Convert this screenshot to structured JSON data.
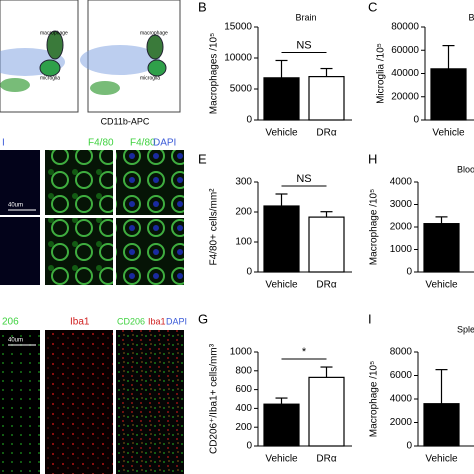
{
  "chart_data": [
    {
      "type": "bar",
      "panel": "B",
      "title": "Brain",
      "y_label": "Macrophages /10⁵",
      "categories": [
        "Vehicle",
        "DRα"
      ],
      "values": [
        6800,
        7000
      ],
      "errors": [
        2800,
        1300
      ],
      "colors": [
        "#000000",
        "#ffffff"
      ],
      "ylim": [
        0,
        15000
      ],
      "yticks": [
        0,
        5000,
        10000,
        15000
      ],
      "annotation": "NS"
    },
    {
      "type": "bar",
      "panel": "C",
      "title": "Br",
      "y_label": "Microglia /10⁵",
      "categories": [
        "Vehicle"
      ],
      "values": [
        44000
      ],
      "errors": [
        20000
      ],
      "colors": [
        "#000000"
      ],
      "ylim": [
        0,
        80000
      ],
      "yticks": [
        0,
        20000,
        40000,
        60000,
        80000
      ]
    },
    {
      "type": "bar",
      "panel": "E",
      "y_label": "F4/80+ cells/mm²",
      "categories": [
        "Vehicle",
        "DRα"
      ],
      "values": [
        220,
        183
      ],
      "errors": [
        40,
        18
      ],
      "colors": [
        "#000000",
        "#ffffff"
      ],
      "ylim": [
        0,
        300
      ],
      "yticks": [
        0,
        100,
        200,
        300
      ],
      "annotation": "NS"
    },
    {
      "type": "bar",
      "panel": "H",
      "title": "Bloo",
      "y_label": "Macrophage /10⁵",
      "categories": [
        "Vehicle"
      ],
      "values": [
        2150
      ],
      "errors": [
        300
      ],
      "colors": [
        "#000000"
      ],
      "ylim": [
        0,
        4000
      ],
      "yticks": [
        0,
        1000,
        2000,
        3000,
        4000
      ]
    },
    {
      "type": "bar",
      "panel": "G",
      "y_label": "CD206⁺/Iba1+ cells/mm³",
      "categories": [
        "Vehicle",
        "DRα"
      ],
      "values": [
        445,
        730
      ],
      "errors": [
        65,
        110
      ],
      "colors": [
        "#000000",
        "#ffffff"
      ],
      "ylim": [
        0,
        1000
      ],
      "yticks": [
        0,
        200,
        400,
        600,
        800,
        1000
      ],
      "annotation": "*"
    },
    {
      "type": "bar",
      "panel": "I",
      "title": "Sple",
      "y_label": "Macrophage /10⁵",
      "categories": [
        "Vehicle"
      ],
      "values": [
        3600
      ],
      "errors": [
        2900
      ],
      "colors": [
        "#000000"
      ],
      "ylim": [
        0,
        8000
      ],
      "yticks": [
        0,
        2000,
        4000,
        6000,
        8000
      ]
    }
  ],
  "image_labels": {
    "gate_1": "macrophage",
    "gate_2": "microglia",
    "gate_3": "macrophage",
    "gate_4": "microglia",
    "x_axis": "CD11b-APC",
    "f480": "F4/80",
    "f480_dapi_1": "F4/80",
    "f480_dapi_2": "DAPI",
    "scale_1": "40um",
    "cd206": "206",
    "iba1": "Iba1",
    "merge_1": "CD206",
    "merge_2": "Iba1",
    "merge_3": "DAPI",
    "scale_2": "40um"
  }
}
